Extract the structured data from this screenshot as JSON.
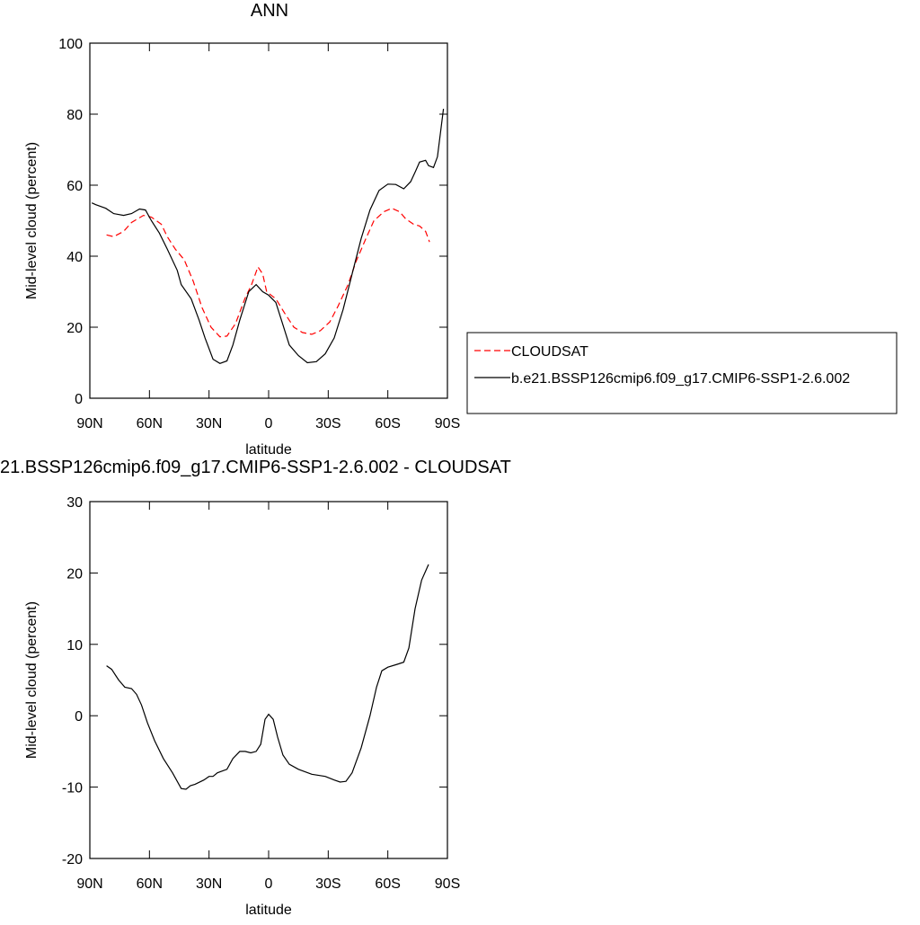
{
  "chart_data": [
    {
      "type": "line",
      "title": "ANN",
      "xlabel": "latitude",
      "ylabel": "Mid-level cloud (percent)",
      "xlim": [
        90,
        -90
      ],
      "ylim": [
        0,
        100
      ],
      "xticks": [
        {
          "value": 90,
          "label": "90N"
        },
        {
          "value": 60,
          "label": "60N"
        },
        {
          "value": 30,
          "label": "30N"
        },
        0,
        {
          "value": -30,
          "label": "30S"
        },
        {
          "value": -60,
          "label": "60S"
        },
        {
          "value": -90,
          "label": "90S"
        }
      ],
      "yticks": [
        0,
        20,
        40,
        60,
        80,
        100
      ],
      "legend": "right",
      "series": [
        {
          "name": "CLOUDSAT",
          "color": "#ff0000",
          "dashed": true,
          "x": [
            81.6,
            78,
            73,
            69,
            63,
            59,
            54,
            51,
            47,
            42.5,
            38,
            33.5,
            29,
            24.5,
            21,
            16.7,
            12,
            8.6,
            5.4,
            3,
            1,
            -3.6,
            -8,
            -12.7,
            -17,
            -21.7,
            -26,
            -30.8,
            -35,
            -40,
            -44,
            -49,
            -53,
            -58,
            -62,
            -66,
            -69,
            -73,
            -76,
            -79,
            -81
          ],
          "values": [
            46,
            45.5,
            47,
            49.5,
            51.5,
            51,
            49,
            45.5,
            42,
            39,
            33,
            25.5,
            20,
            17.3,
            17.5,
            21,
            28,
            32,
            37,
            35,
            30,
            28,
            24,
            20,
            18.5,
            18,
            19,
            21.5,
            26,
            32,
            38.5,
            45,
            50,
            52.5,
            53.5,
            52.5,
            50.5,
            49,
            48.5,
            47,
            44
          ]
        },
        {
          "name": "b.e21.BSSP126cmip6.f09_g17.CMIP6-SSP1-2.6.002",
          "color": "#000000",
          "dashed": false,
          "x": [
            89,
            87,
            82,
            78,
            73,
            69,
            65,
            62,
            59,
            55,
            51,
            46,
            44,
            39,
            35,
            32,
            28,
            24.5,
            21,
            18,
            14.5,
            10,
            6.3,
            3,
            0,
            -3.6,
            -7,
            -10.4,
            -15,
            -19.5,
            -24,
            -28.5,
            -33,
            -37.5,
            -42,
            -46.6,
            -51,
            -55.6,
            -60,
            -64,
            -68,
            -71.5,
            -74,
            -76,
            -79,
            -80.5,
            -83,
            -85,
            -88
          ],
          "values": [
            55,
            54.5,
            53.5,
            52,
            51.5,
            52,
            53.3,
            53,
            50,
            46.5,
            42,
            36,
            32,
            28,
            22,
            17,
            11,
            9.8,
            10.5,
            15,
            22,
            30,
            32,
            30,
            29,
            27,
            21,
            15,
            12,
            10,
            10.3,
            12.5,
            17,
            25,
            35,
            45,
            53,
            58.5,
            60.3,
            60.2,
            59,
            61,
            64,
            66.5,
            67,
            65.5,
            65,
            68,
            81.5
          ]
        }
      ]
    },
    {
      "type": "line",
      "title": "21.BSSP126cmip6.f09_g17.CMIP6-SSP1-2.6.002 - CLOUDSAT",
      "xlabel": "latitude",
      "ylabel": "Mid-level cloud (percent)",
      "xlim": [
        90,
        -90
      ],
      "ylim": [
        -20,
        30
      ],
      "xticks": [
        {
          "value": 90,
          "label": "90N"
        },
        {
          "value": 60,
          "label": "60N"
        },
        {
          "value": 30,
          "label": "30N"
        },
        0,
        {
          "value": -30,
          "label": "30S"
        },
        {
          "value": -60,
          "label": "60S"
        },
        {
          "value": -90,
          "label": "90S"
        }
      ],
      "yticks": [
        -20,
        -10,
        0,
        10,
        20,
        30
      ],
      "series": [
        {
          "color": "#000000",
          "dashed": false,
          "x": [
            81.6,
            79,
            75.5,
            72.4,
            69,
            66.5,
            64,
            61,
            57.4,
            53,
            48.4,
            44,
            41.6,
            39.4,
            37,
            32.6,
            30,
            28,
            25.8,
            21,
            18,
            14.5,
            11.8,
            9,
            6.3,
            4,
            1.8,
            0,
            -2.3,
            -4.5,
            -7.2,
            -10.4,
            -15,
            -21.7,
            -28.5,
            -33,
            -36,
            -38.9,
            -42,
            -46.6,
            -51,
            -54.3,
            -57,
            -60,
            -64.7,
            -68,
            -70.6,
            -73.7,
            -77,
            -80.5
          ],
          "values": [
            7,
            6.5,
            5,
            4,
            3.8,
            3,
            1.5,
            -1,
            -3.5,
            -6,
            -8,
            -10.2,
            -10.3,
            -9.8,
            -9.6,
            -9,
            -8.5,
            -8.5,
            -8,
            -7.5,
            -6,
            -5,
            -5,
            -5.2,
            -5,
            -4,
            -0.5,
            0.2,
            -0.5,
            -3,
            -5.5,
            -6.8,
            -7.5,
            -8.2,
            -8.5,
            -9,
            -9.3,
            -9.2,
            -8,
            -4.5,
            0,
            4,
            6.3,
            6.8,
            7.2,
            7.5,
            9.5,
            15,
            19,
            21.2
          ]
        }
      ]
    }
  ]
}
